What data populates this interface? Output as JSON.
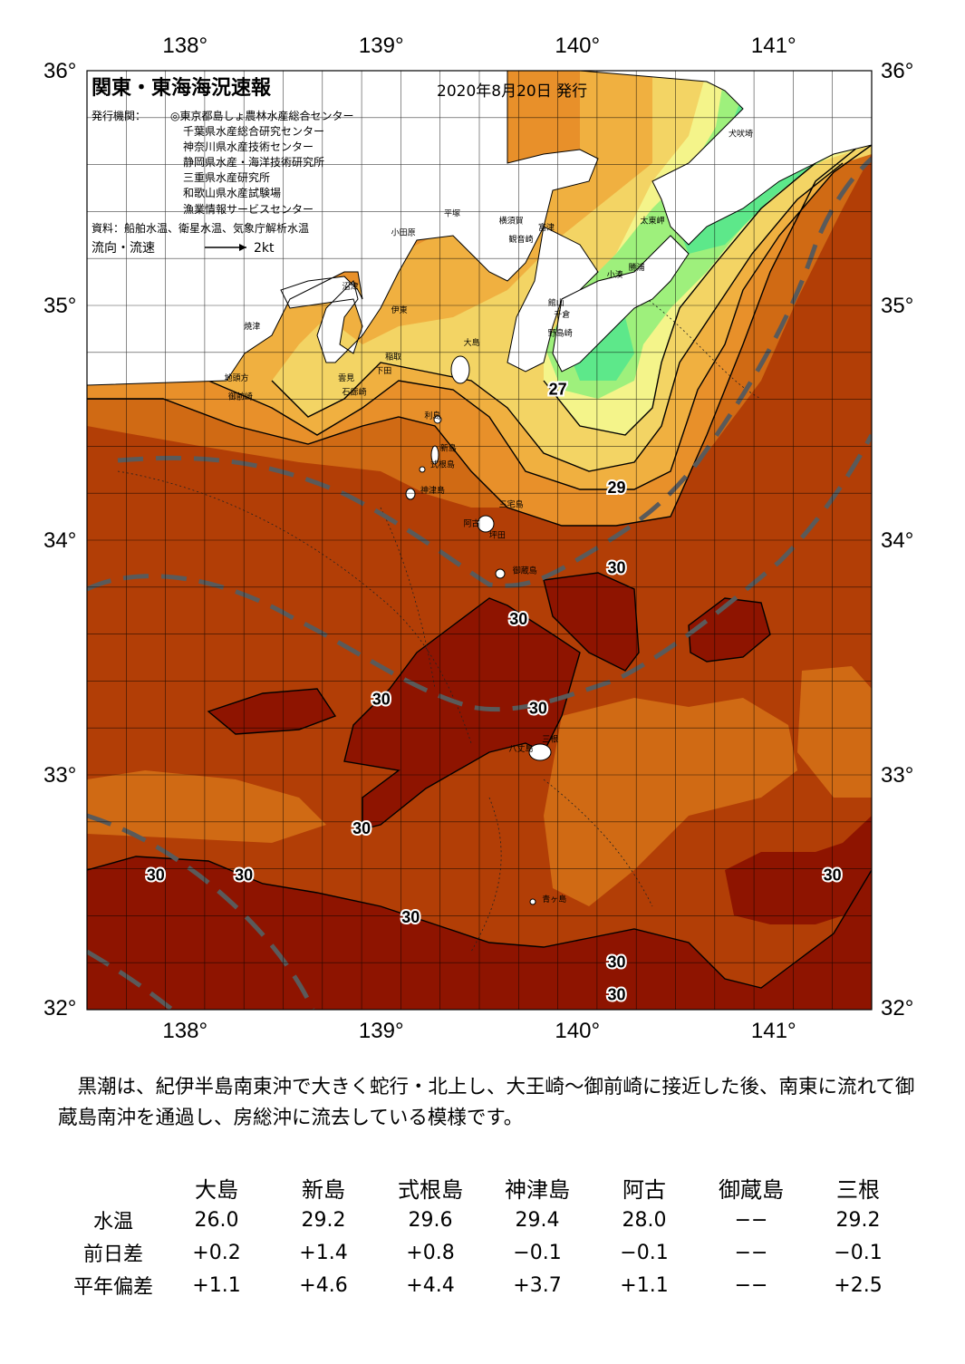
{
  "header": {
    "title": "関東・東海海況速報",
    "date": "2020年8月20日 発行",
    "publisher_label": "発行機関：",
    "publishers": [
      "◎東京都島しょ農林水産総合センター",
      "千葉県水産総合研究センター",
      "神奈川県水産技術センター",
      "静岡県水産・海洋技術研究所",
      "三重県水産研究所",
      "和歌山県水産試験場",
      "漁業情報サービスセンター"
    ],
    "source": "資料：船舶水温、衛星水温、気象庁解析水温",
    "flow_label": "流向・流速",
    "flow_scale": "2kt"
  },
  "axes": {
    "lon_ticks": [
      138,
      139,
      140,
      141
    ],
    "lat_ticks": [
      36,
      35,
      34,
      33,
      32
    ],
    "lon_labels": [
      "138°",
      "139°",
      "140°",
      "141°"
    ],
    "lat_labels": [
      "36°",
      "35°",
      "34°",
      "33°",
      "32°"
    ],
    "lon_range": [
      137.5,
      141.5
    ],
    "lat_range": [
      32,
      36
    ]
  },
  "contour_labels": [
    {
      "text": "27",
      "lon": 139.9,
      "lat": 34.62
    },
    {
      "text": "29",
      "lon": 140.2,
      "lat": 34.2
    },
    {
      "text": "30",
      "lon": 140.2,
      "lat": 33.86
    },
    {
      "text": "30",
      "lon": 139.7,
      "lat": 33.64
    },
    {
      "text": "30",
      "lon": 139.0,
      "lat": 33.3
    },
    {
      "text": "30",
      "lon": 139.8,
      "lat": 33.26
    },
    {
      "text": "30",
      "lon": 138.9,
      "lat": 32.75
    },
    {
      "text": "30",
      "lon": 137.85,
      "lat": 32.55
    },
    {
      "text": "30",
      "lon": 138.3,
      "lat": 32.55
    },
    {
      "text": "30",
      "lon": 139.15,
      "lat": 32.37
    },
    {
      "text": "30",
      "lon": 140.2,
      "lat": 32.18
    },
    {
      "text": "30",
      "lon": 140.2,
      "lat": 32.04
    },
    {
      "text": "30",
      "lon": 141.3,
      "lat": 32.55
    }
  ],
  "places": [
    {
      "name": "犬吠埼",
      "lon": 140.77,
      "lat": 35.72
    },
    {
      "name": "太東岬",
      "lon": 140.32,
      "lat": 35.35
    },
    {
      "name": "勝浦",
      "lon": 140.26,
      "lat": 35.15
    },
    {
      "name": "小湊",
      "lon": 140.15,
      "lat": 35.12
    },
    {
      "name": "館山",
      "lon": 139.85,
      "lat": 35.0
    },
    {
      "name": "千倉",
      "lon": 139.88,
      "lat": 34.95
    },
    {
      "name": "野島崎",
      "lon": 139.85,
      "lat": 34.87
    },
    {
      "name": "富津",
      "lon": 139.8,
      "lat": 35.32
    },
    {
      "name": "横須賀",
      "lon": 139.6,
      "lat": 35.35
    },
    {
      "name": "観音崎",
      "lon": 139.65,
      "lat": 35.27
    },
    {
      "name": "平塚",
      "lon": 139.32,
      "lat": 35.38
    },
    {
      "name": "小田原",
      "lon": 139.05,
      "lat": 35.3
    },
    {
      "name": "沼津",
      "lon": 138.8,
      "lat": 35.07
    },
    {
      "name": "伊東",
      "lon": 139.05,
      "lat": 34.97
    },
    {
      "name": "焼津",
      "lon": 138.3,
      "lat": 34.9
    },
    {
      "name": "大島",
      "lon": 139.42,
      "lat": 34.83
    },
    {
      "name": "稲取",
      "lon": 139.02,
      "lat": 34.77
    },
    {
      "name": "下田",
      "lon": 138.97,
      "lat": 34.71
    },
    {
      "name": "雲見",
      "lon": 138.78,
      "lat": 34.68
    },
    {
      "name": "石廊崎",
      "lon": 138.8,
      "lat": 34.62
    },
    {
      "name": "地頭方",
      "lon": 138.2,
      "lat": 34.68
    },
    {
      "name": "御前崎",
      "lon": 138.22,
      "lat": 34.6
    },
    {
      "name": "利島",
      "lon": 139.22,
      "lat": 34.52
    },
    {
      "name": "新島",
      "lon": 139.3,
      "lat": 34.38
    },
    {
      "name": "式根島",
      "lon": 139.25,
      "lat": 34.31
    },
    {
      "name": "神津島",
      "lon": 139.2,
      "lat": 34.2
    },
    {
      "name": "三宅島",
      "lon": 139.6,
      "lat": 34.14
    },
    {
      "name": "阿古",
      "lon": 139.42,
      "lat": 34.06
    },
    {
      "name": "坪田",
      "lon": 139.55,
      "lat": 34.01
    },
    {
      "name": "御蔵島",
      "lon": 139.67,
      "lat": 33.86
    },
    {
      "name": "八丈島",
      "lon": 139.65,
      "lat": 33.1
    },
    {
      "name": "三根",
      "lon": 139.82,
      "lat": 33.14
    },
    {
      "name": "青ヶ島",
      "lon": 139.82,
      "lat": 32.46
    }
  ],
  "colors": {
    "t_lt20": "#5de88a",
    "t_20_22": "#9ef07c",
    "t_22_24": "#f4f48a",
    "t_24_26": "#f3d464",
    "t_26_27": "#f0b040",
    "t_27_28": "#e8902a",
    "t_28_29": "#d06a14",
    "t_29_30": "#b23e06",
    "t_ge30": "#8e1400",
    "kuroshio_axis": "#5a5a5a",
    "land": "#ffffff"
  },
  "description": "黒潮は、紀伊半島南東沖で大きく蛇行・北上し、大王崎～御前崎に接近した後、南東に流れて御蔵島南沖を通過し、房総沖に流去している模様です。",
  "table": {
    "stations": [
      "大島",
      "新島",
      "式根島",
      "神津島",
      "阿古",
      "御蔵島",
      "三根"
    ],
    "rows": [
      {
        "label": "水温",
        "values": [
          "26.0",
          "29.2",
          "29.6",
          "29.4",
          "28.0",
          "−−",
          "29.2"
        ]
      },
      {
        "label": "前日差",
        "values": [
          "+0.2",
          "+1.4",
          "+0.8",
          "−0.1",
          "−0.1",
          "−−",
          "−0.1"
        ]
      },
      {
        "label": "平年偏差",
        "values": [
          "+1.1",
          "+4.6",
          "+4.4",
          "+3.7",
          "+1.1",
          "−−",
          "+2.5"
        ]
      }
    ]
  }
}
